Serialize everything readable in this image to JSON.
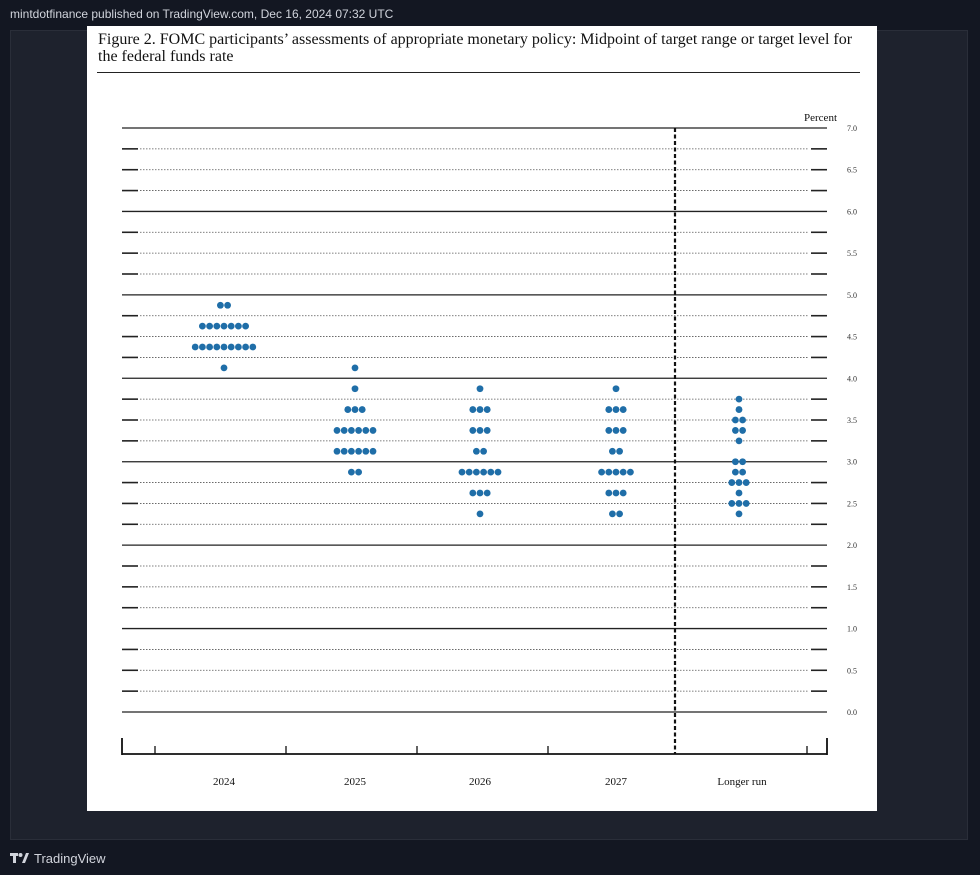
{
  "header": {
    "attribution": "mintdotfinance published on TradingView.com, Dec 16, 2024 07:32 UTC"
  },
  "footer": {
    "brand": "TradingView",
    "logo_icon": "tradingview-logo-icon"
  },
  "colors": {
    "dot": "#1f6ea8",
    "background": "#131722",
    "paper": "#ffffff"
  },
  "chart_data": {
    "type": "scatter",
    "title": "Figure 2.  FOMC participants’ assessments of appropriate monetary policy:  Midpoint of target range or target level for the federal funds rate",
    "ylabel": "Percent",
    "ylim": [
      0,
      7
    ],
    "yticks": [
      "0.0",
      "0.5",
      "1.0",
      "1.5",
      "2.0",
      "2.5",
      "3.0",
      "3.5",
      "4.0",
      "4.5",
      "5.0",
      "5.5",
      "6.0",
      "6.5",
      "7.0"
    ],
    "categories": [
      "2024",
      "2025",
      "2026",
      "2027",
      "Longer run"
    ],
    "grid": true,
    "dots": {
      "2024": [
        {
          "rate": 4.125,
          "count": 1
        },
        {
          "rate": 4.375,
          "count": 9
        },
        {
          "rate": 4.625,
          "count": 7
        },
        {
          "rate": 4.875,
          "count": 2
        }
      ],
      "2025": [
        {
          "rate": 2.875,
          "count": 2
        },
        {
          "rate": 3.125,
          "count": 6
        },
        {
          "rate": 3.375,
          "count": 6
        },
        {
          "rate": 3.625,
          "count": 3
        },
        {
          "rate": 3.875,
          "count": 1
        },
        {
          "rate": 4.125,
          "count": 1
        }
      ],
      "2026": [
        {
          "rate": 2.375,
          "count": 1
        },
        {
          "rate": 2.625,
          "count": 3
        },
        {
          "rate": 2.875,
          "count": 6
        },
        {
          "rate": 3.125,
          "count": 2
        },
        {
          "rate": 3.375,
          "count": 3
        },
        {
          "rate": 3.625,
          "count": 3
        },
        {
          "rate": 3.875,
          "count": 1
        }
      ],
      "2027": [
        {
          "rate": 2.375,
          "count": 2
        },
        {
          "rate": 2.625,
          "count": 3
        },
        {
          "rate": 2.875,
          "count": 5
        },
        {
          "rate": 3.125,
          "count": 2
        },
        {
          "rate": 3.375,
          "count": 3
        },
        {
          "rate": 3.625,
          "count": 3
        },
        {
          "rate": 3.875,
          "count": 1
        }
      ],
      "Longer run": [
        {
          "rate": 2.375,
          "count": 1
        },
        {
          "rate": 2.5,
          "count": 3
        },
        {
          "rate": 2.625,
          "count": 1
        },
        {
          "rate": 2.75,
          "count": 3
        },
        {
          "rate": 2.875,
          "count": 2
        },
        {
          "rate": 3.0,
          "count": 2
        },
        {
          "rate": 3.25,
          "count": 1
        },
        {
          "rate": 3.375,
          "count": 2
        },
        {
          "rate": 3.5,
          "count": 2
        },
        {
          "rate": 3.625,
          "count": 1
        },
        {
          "rate": 3.75,
          "count": 1
        }
      ]
    }
  }
}
